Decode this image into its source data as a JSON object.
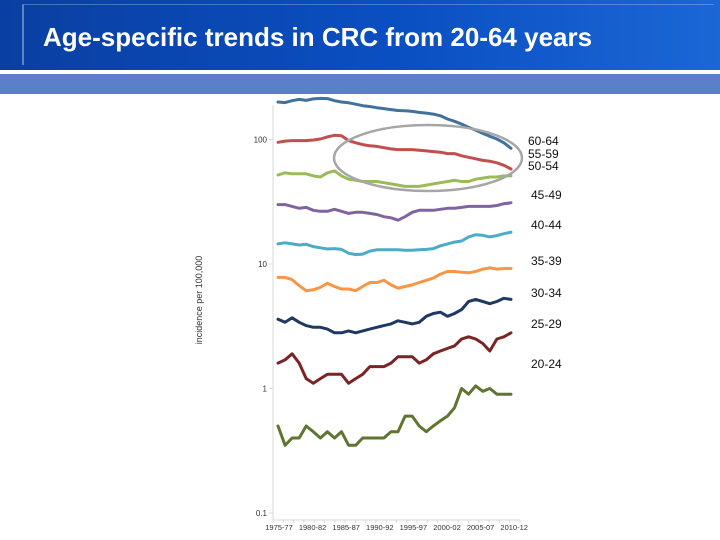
{
  "title": "Age-specific trends in CRC from 20-64 years",
  "chart_data": {
    "type": "line",
    "title": "",
    "xlabel": "",
    "ylabel": "incidence per 100,000",
    "y_scale": "log",
    "ylim": [
      0.1,
      250
    ],
    "y_ticks": [
      {
        "value": 100,
        "label": "100"
      },
      {
        "value": 10,
        "label": "10"
      },
      {
        "value": 1,
        "label": "1"
      },
      {
        "value": 0.1,
        "label": "0.1"
      }
    ],
    "x_tick_labels": [
      "1975-77",
      "1980-82",
      "1985-87",
      "1990-92",
      "1995-97",
      "2000-02",
      "2005-07",
      "2010-12"
    ],
    "grid": false,
    "legend": "direct labels right",
    "highlight_ellipse_groups": [
      "60-64",
      "55-59",
      "50-54"
    ],
    "colors": {
      "axis": "#d9d9d9",
      "ellipse": "#a6a6a6",
      "tick_text": "#333333"
    },
    "series": [
      {
        "name": "60-64",
        "color": "#41719c",
        "values": [
          200,
          198,
          205,
          210,
          206,
          212,
          214,
          213,
          205,
          200,
          197,
          192,
          187,
          184,
          180,
          177,
          174,
          171,
          170,
          168,
          165,
          163,
          160,
          155,
          146,
          140,
          133,
          125,
          119,
          112,
          106,
          101,
          94,
          85
        ]
      },
      {
        "name": "55-59",
        "color": "#c0504d",
        "values": [
          95,
          97,
          98,
          98,
          98,
          99,
          101,
          105,
          108,
          107,
          98,
          94,
          91,
          89,
          88,
          86,
          84,
          83,
          83,
          83,
          82,
          81,
          80,
          79,
          77,
          77,
          74,
          72,
          70,
          68,
          67,
          65,
          62,
          58
        ]
      },
      {
        "name": "50-54",
        "color": "#9bbb59",
        "values": [
          52,
          54,
          53,
          53,
          53,
          51,
          50,
          54,
          56,
          51,
          48,
          47,
          46,
          46,
          46,
          45,
          44,
          43,
          42,
          42,
          42,
          43,
          44,
          45,
          46,
          47,
          46,
          46,
          48,
          49,
          50,
          50,
          51,
          51
        ]
      },
      {
        "name": "45-49",
        "color": "#8064a2",
        "values": [
          30,
          30,
          29,
          28,
          28.5,
          27,
          26.5,
          26.5,
          27.5,
          26.5,
          25.5,
          26,
          26,
          25.5,
          25,
          24,
          23.5,
          22.5,
          24,
          26,
          27,
          27,
          27,
          27.5,
          28,
          28,
          28.5,
          29,
          29,
          29,
          29,
          29.5,
          30.5,
          31
        ]
      },
      {
        "name": "40-44",
        "color": "#4bacc6",
        "values": [
          14.5,
          14.8,
          14.5,
          14.2,
          14.4,
          13.8,
          13.5,
          13.2,
          13.3,
          13.1,
          12.2,
          11.9,
          12.0,
          12.7,
          13.0,
          13.0,
          13.0,
          13.0,
          12.9,
          12.9,
          13.0,
          13.1,
          13.3,
          14.0,
          14.5,
          15.0,
          15.3,
          16.5,
          17.2,
          17.0,
          16.5,
          16.9,
          17.5,
          18.0
        ]
      },
      {
        "name": "35-39",
        "color": "#f79646",
        "values": [
          7.8,
          7.8,
          7.5,
          6.7,
          6.1,
          6.2,
          6.5,
          7.0,
          6.6,
          6.3,
          6.3,
          6.1,
          6.6,
          7.1,
          7.1,
          7.4,
          6.8,
          6.4,
          6.6,
          6.8,
          7.1,
          7.4,
          7.7,
          8.3,
          8.7,
          8.7,
          8.6,
          8.5,
          8.7,
          9.1,
          9.3,
          9.1,
          9.2,
          9.2
        ]
      },
      {
        "name": "30-34",
        "color": "#1f3864",
        "values": [
          3.6,
          3.4,
          3.7,
          3.4,
          3.2,
          3.1,
          3.1,
          3.0,
          2.8,
          2.8,
          2.9,
          2.8,
          2.9,
          3.0,
          3.1,
          3.2,
          3.3,
          3.5,
          3.4,
          3.3,
          3.4,
          3.8,
          4.0,
          4.1,
          3.8,
          4.0,
          4.3,
          5.0,
          5.2,
          5.0,
          4.8,
          5.0,
          5.3,
          5.2
        ]
      },
      {
        "name": "25-29",
        "color": "#7b2426",
        "values": [
          1.6,
          1.7,
          1.9,
          1.6,
          1.2,
          1.1,
          1.2,
          1.3,
          1.3,
          1.3,
          1.1,
          1.2,
          1.3,
          1.5,
          1.5,
          1.5,
          1.6,
          1.8,
          1.8,
          1.8,
          1.6,
          1.7,
          1.9,
          2.0,
          2.1,
          2.2,
          2.5,
          2.6,
          2.5,
          2.3,
          2.0,
          2.5,
          2.6,
          2.8
        ]
      },
      {
        "name": "20-24",
        "color": "#5f7530",
        "values": [
          0.5,
          0.35,
          0.4,
          0.4,
          0.5,
          0.45,
          0.4,
          0.45,
          0.4,
          0.45,
          0.35,
          0.35,
          0.4,
          0.4,
          0.4,
          0.4,
          0.45,
          0.45,
          0.6,
          0.6,
          0.5,
          0.45,
          0.5,
          0.55,
          0.6,
          0.7,
          1.0,
          0.9,
          1.05,
          0.95,
          1.0,
          0.9,
          0.9,
          0.9
        ]
      }
    ]
  }
}
